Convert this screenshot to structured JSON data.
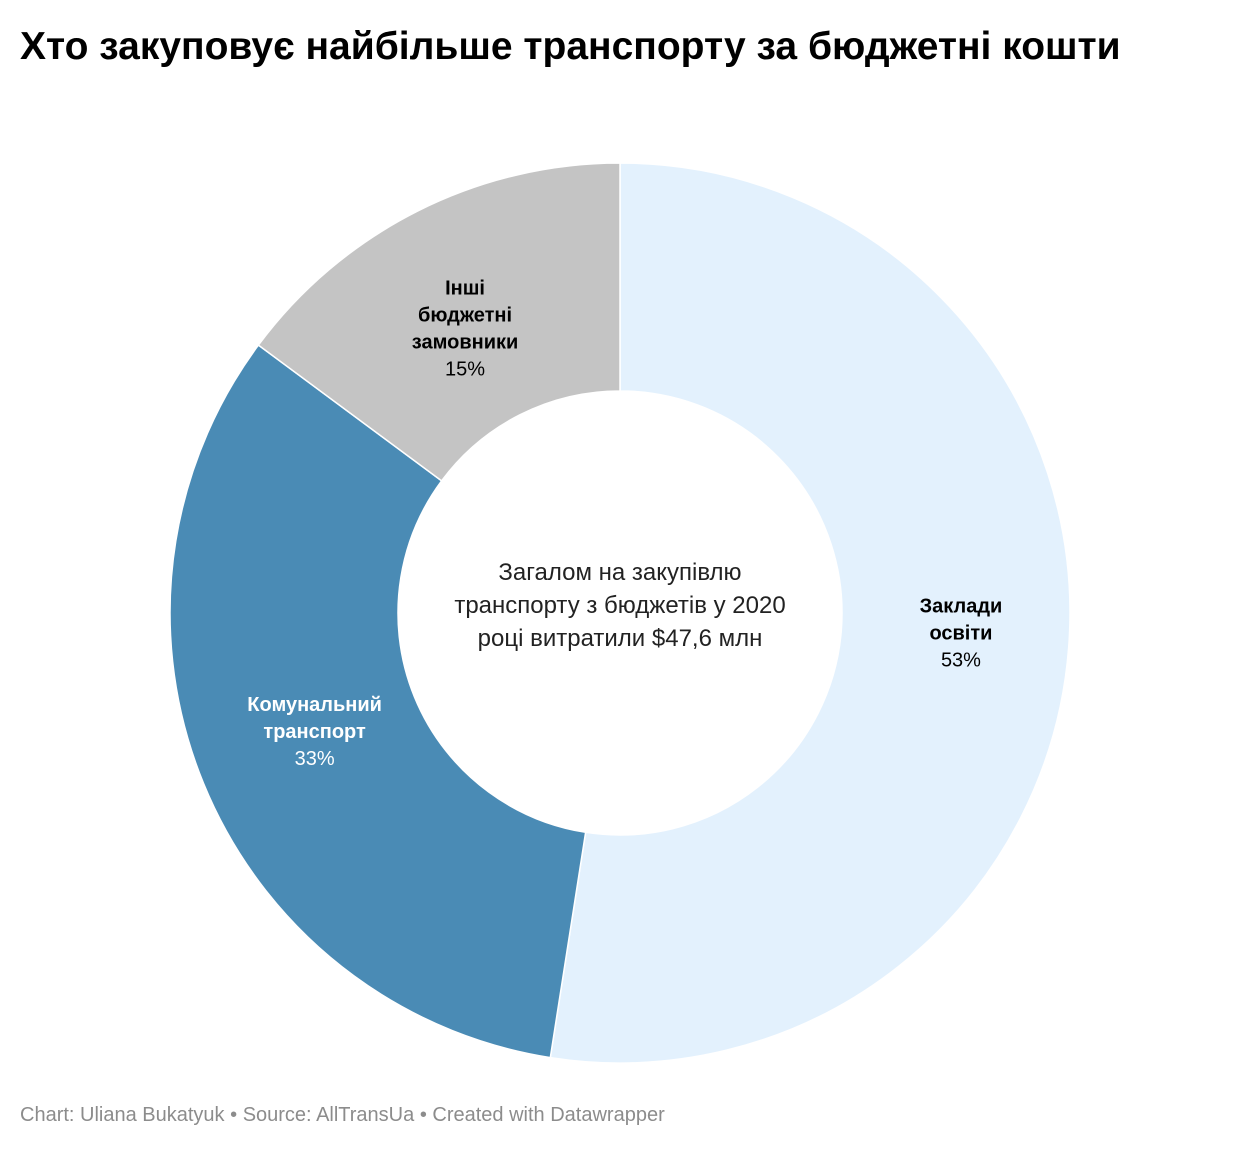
{
  "title": "Хто закуповує найбільше транспорту за бюджетні кошти",
  "center_text": [
    "Загалом на закупівлю",
    "транспорту з бюджетів у 2020",
    "році витратили $47,6 млн"
  ],
  "footer": {
    "chart": "Chart: Uliana Bukatyuk",
    "source": "Source: AllTransUa",
    "created": "Created with Datawrapper",
    "separator": "•"
  },
  "chart_data": {
    "type": "pie",
    "subtype": "donut",
    "title": "Хто закуповує найбільше транспорту за бюджетні кошти",
    "unit": "%",
    "categories": [
      "Заклади освіти",
      "Комунальний транспорт",
      "Інші бюджетні замовники"
    ],
    "values": [
      53,
      33,
      15
    ],
    "value_labels": [
      "53%",
      "33%",
      "15%"
    ],
    "label_lines": [
      [
        "Заклади",
        "освіти"
      ],
      [
        "Комунальний",
        "транспорт"
      ],
      [
        "Інші",
        "бюджетні",
        "замовники"
      ]
    ],
    "colors": [
      "#e3f1fd",
      "#4a8bb5",
      "#c4c4c4"
    ],
    "label_colors": [
      "#000000",
      "#ffffff",
      "#000000"
    ],
    "start_angle": "top, clockwise"
  }
}
